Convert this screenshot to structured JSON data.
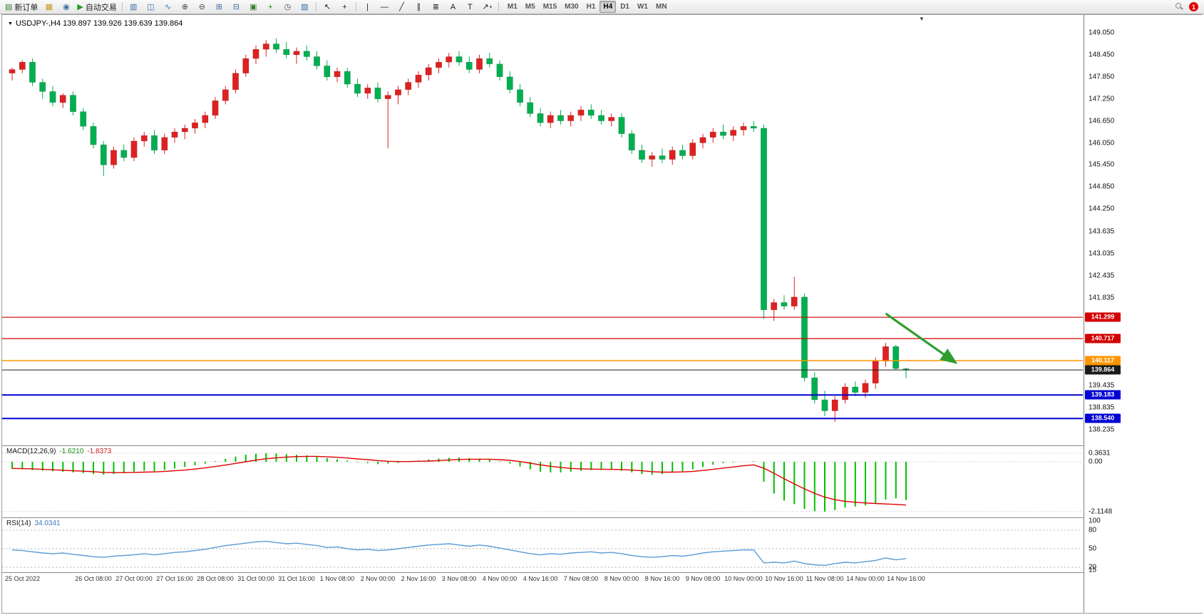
{
  "toolbar": {
    "items": [
      {
        "name": "new-order-button",
        "glyph": "▤",
        "gc": "#2e7d32",
        "label": "新订单"
      },
      {
        "name": "expert-advisors-icon",
        "glyph": "▦",
        "gc": "#c39b1a"
      },
      {
        "name": "market-watch-icon",
        "glyph": "◉",
        "gc": "#3a6ea5"
      },
      {
        "name": "auto-trading-button",
        "glyph": "▶",
        "gc": "#1e9b1e",
        "label": "自动交易"
      },
      {
        "sep": true
      },
      {
        "name": "bar-chart-icon",
        "glyph": "▥",
        "gc": "#3a6ea5"
      },
      {
        "name": "candlestick-chart-icon",
        "glyph": "◫",
        "gc": "#3a6ea5"
      },
      {
        "name": "line-chart-icon",
        "glyph": "∿",
        "gc": "#3a6ea5"
      },
      {
        "name": "zoom-in-icon",
        "glyph": "⊕",
        "gc": "#444444"
      },
      {
        "name": "zoom-out-icon",
        "glyph": "⊖",
        "gc": "#444444"
      },
      {
        "name": "tile-windows-icon",
        "glyph": "⊞",
        "gc": "#3a6ea5"
      },
      {
        "name": "cascade-windows-icon",
        "glyph": "⊟",
        "gc": "#3a6ea5"
      },
      {
        "name": "new-chart-icon",
        "glyph": "▣",
        "gc": "#2e7d32"
      },
      {
        "name": "indicators-icon",
        "glyph": "+",
        "gc": "#0a8a0a"
      },
      {
        "name": "period-icon",
        "glyph": "◷",
        "gc": "#444444"
      },
      {
        "name": "template-icon",
        "glyph": "▨",
        "gc": "#3a6ea5"
      },
      {
        "sep": true
      },
      {
        "name": "cursor-icon",
        "glyph": "↖",
        "gc": "#222222"
      },
      {
        "name": "crosshair-icon",
        "glyph": "+",
        "gc": "#222222"
      },
      {
        "sep": true
      },
      {
        "name": "vertical-line-icon",
        "glyph": "|",
        "gc": "#222222"
      },
      {
        "name": "horizontal-line-icon",
        "glyph": "—",
        "gc": "#222222"
      },
      {
        "name": "trendline-icon",
        "glyph": "╱",
        "gc": "#222222"
      },
      {
        "name": "channel-icon",
        "glyph": "∥",
        "gc": "#222222"
      },
      {
        "name": "fibonacci-icon",
        "glyph": "≣",
        "gc": "#222222"
      },
      {
        "name": "text-icon",
        "glyph": "A",
        "gc": "#222222"
      },
      {
        "name": "label-icon",
        "glyph": "T",
        "gc": "#222222"
      },
      {
        "name": "arrows-tool-icon",
        "glyph": "↗",
        "gc": "#222222",
        "caret": true
      },
      {
        "sep": true
      }
    ],
    "timeframes": [
      "M1",
      "M5",
      "M15",
      "M30",
      "H1",
      "H4",
      "D1",
      "W1",
      "MN"
    ],
    "active_timeframe": "H4",
    "notification_count": "1"
  },
  "chart": {
    "symbol_label": "USDJPY-,H4 139.897 139.926 139.639 139.864"
  },
  "chart_data": {
    "type": "candlestick",
    "symbol": "USDJPY-",
    "timeframe": "H4",
    "ohlc_current": {
      "open": 139.897,
      "high": 139.926,
      "low": 139.639,
      "close": 139.864
    },
    "colors": {
      "up": "#e02020",
      "down": "#00b050"
    },
    "price_axis_ticks": [
      149.05,
      148.45,
      147.85,
      147.25,
      146.65,
      146.05,
      145.45,
      144.85,
      144.25,
      143.635,
      143.035,
      142.435,
      141.835,
      139.435,
      138.835,
      138.235
    ],
    "horizontal_lines": [
      {
        "price": 141.299,
        "color": "#d20000",
        "width": 1.2
      },
      {
        "price": 140.717,
        "color": "#d20000",
        "width": 1.2
      },
      {
        "price": 140.117,
        "color": "#ff9500",
        "width": 1.6
      },
      {
        "price": 139.183,
        "color": "#0000d2",
        "width": 2
      },
      {
        "price": 138.54,
        "color": "#0000d2",
        "width": 2
      }
    ],
    "current_price_line": {
      "price": 139.864,
      "color": "#1a1a1a"
    },
    "annotation_arrow": {
      "from_bar": 86,
      "from_price": 141.4,
      "to_bar": 92.8,
      "to_price": 140.08,
      "color": "#2f9e2f"
    },
    "candles": [
      [
        147.95,
        148.1,
        147.75,
        148.05
      ],
      [
        148.05,
        148.3,
        147.95,
        148.25
      ],
      [
        148.25,
        148.35,
        147.6,
        147.7
      ],
      [
        147.7,
        147.8,
        147.25,
        147.45
      ],
      [
        147.45,
        147.6,
        147.05,
        147.15
      ],
      [
        147.15,
        147.4,
        147.0,
        147.35
      ],
      [
        147.35,
        147.45,
        146.8,
        146.9
      ],
      [
        146.9,
        147.0,
        146.4,
        146.5
      ],
      [
        146.5,
        146.6,
        145.9,
        146.0
      ],
      [
        146.0,
        146.1,
        145.15,
        145.45
      ],
      [
        145.45,
        145.95,
        145.35,
        145.85
      ],
      [
        145.85,
        146.0,
        145.55,
        145.65
      ],
      [
        145.65,
        146.2,
        145.55,
        146.1
      ],
      [
        146.1,
        146.35,
        145.95,
        146.25
      ],
      [
        146.25,
        146.4,
        145.75,
        145.85
      ],
      [
        145.85,
        146.3,
        145.75,
        146.2
      ],
      [
        146.2,
        146.45,
        146.05,
        146.35
      ],
      [
        146.35,
        146.55,
        146.15,
        146.45
      ],
      [
        146.45,
        146.7,
        146.3,
        146.6
      ],
      [
        146.6,
        146.9,
        146.45,
        146.8
      ],
      [
        146.8,
        147.3,
        146.7,
        147.2
      ],
      [
        147.2,
        147.6,
        147.1,
        147.5
      ],
      [
        147.5,
        148.05,
        147.4,
        147.95
      ],
      [
        147.95,
        148.45,
        147.85,
        148.35
      ],
      [
        148.35,
        148.7,
        148.2,
        148.6
      ],
      [
        148.6,
        148.85,
        148.4,
        148.75
      ],
      [
        148.75,
        148.9,
        148.5,
        148.6
      ],
      [
        148.6,
        148.8,
        148.35,
        148.45
      ],
      [
        148.45,
        148.65,
        148.2,
        148.55
      ],
      [
        148.55,
        148.7,
        148.3,
        148.4
      ],
      [
        148.4,
        148.55,
        148.05,
        148.15
      ],
      [
        148.15,
        148.3,
        147.75,
        147.85
      ],
      [
        147.85,
        148.1,
        147.7,
        148.0
      ],
      [
        148.0,
        148.1,
        147.55,
        147.65
      ],
      [
        147.65,
        147.8,
        147.3,
        147.4
      ],
      [
        147.4,
        147.65,
        147.25,
        147.55
      ],
      [
        147.55,
        147.7,
        147.15,
        147.25
      ],
      [
        147.25,
        147.45,
        145.9,
        147.35
      ],
      [
        147.35,
        147.6,
        147.1,
        147.5
      ],
      [
        147.5,
        147.8,
        147.35,
        147.7
      ],
      [
        147.7,
        148.0,
        147.55,
        147.9
      ],
      [
        147.9,
        148.2,
        147.75,
        148.1
      ],
      [
        148.1,
        148.35,
        147.95,
        148.25
      ],
      [
        148.25,
        148.5,
        148.1,
        148.4
      ],
      [
        148.4,
        148.55,
        148.15,
        148.25
      ],
      [
        148.25,
        148.4,
        147.95,
        148.05
      ],
      [
        148.05,
        148.45,
        147.95,
        148.35
      ],
      [
        148.35,
        148.5,
        148.1,
        148.2
      ],
      [
        148.2,
        148.3,
        147.75,
        147.85
      ],
      [
        147.85,
        148.0,
        147.4,
        147.5
      ],
      [
        147.5,
        147.65,
        147.05,
        147.15
      ],
      [
        147.15,
        147.3,
        146.75,
        146.85
      ],
      [
        146.85,
        147.0,
        146.5,
        146.6
      ],
      [
        146.6,
        146.9,
        146.45,
        146.8
      ],
      [
        146.8,
        146.95,
        146.55,
        146.65
      ],
      [
        146.65,
        146.9,
        146.5,
        146.8
      ],
      [
        146.8,
        147.05,
        146.65,
        146.95
      ],
      [
        146.95,
        147.1,
        146.7,
        146.8
      ],
      [
        146.8,
        146.95,
        146.55,
        146.65
      ],
      [
        146.65,
        146.85,
        146.5,
        146.75
      ],
      [
        146.75,
        146.85,
        146.2,
        146.3
      ],
      [
        146.3,
        146.4,
        145.75,
        145.85
      ],
      [
        145.85,
        146.0,
        145.5,
        145.6
      ],
      [
        145.6,
        145.8,
        145.4,
        145.7
      ],
      [
        145.7,
        145.9,
        145.5,
        145.6
      ],
      [
        145.6,
        145.95,
        145.45,
        145.85
      ],
      [
        145.85,
        146.0,
        145.6,
        145.7
      ],
      [
        145.7,
        146.15,
        145.6,
        146.05
      ],
      [
        146.05,
        146.3,
        145.9,
        146.2
      ],
      [
        146.2,
        146.45,
        146.05,
        146.35
      ],
      [
        146.35,
        146.55,
        146.15,
        146.25
      ],
      [
        146.25,
        146.5,
        146.1,
        146.4
      ],
      [
        146.4,
        146.6,
        146.25,
        146.5
      ],
      [
        146.5,
        146.65,
        146.35,
        146.45
      ],
      [
        146.45,
        146.55,
        141.25,
        141.5
      ],
      [
        141.5,
        141.8,
        141.2,
        141.7
      ],
      [
        141.7,
        141.9,
        141.5,
        141.6
      ],
      [
        141.6,
        142.4,
        141.5,
        141.85
      ],
      [
        141.85,
        141.95,
        139.55,
        139.65
      ],
      [
        139.65,
        139.8,
        138.95,
        139.05
      ],
      [
        139.05,
        139.3,
        138.6,
        138.75
      ],
      [
        138.75,
        139.15,
        138.45,
        139.05
      ],
      [
        139.05,
        139.5,
        138.95,
        139.4
      ],
      [
        139.4,
        139.55,
        139.15,
        139.25
      ],
      [
        139.25,
        139.6,
        139.1,
        139.5
      ],
      [
        139.5,
        140.2,
        139.35,
        140.1
      ],
      [
        140.1,
        140.6,
        139.95,
        140.5
      ],
      [
        140.5,
        140.55,
        139.85,
        139.9
      ],
      [
        139.897,
        139.926,
        139.639,
        139.864
      ]
    ],
    "macd": {
      "name": "MACD(12,26,9)",
      "value_main": "-1.6210",
      "value_signal": "-1.8373",
      "hist_color": "#00c000",
      "signal_color": "#e00000",
      "axis_labels": [
        {
          "v": 0.3631,
          "t": "0.3631"
        },
        {
          "v": 0,
          "t": "0.00"
        },
        {
          "v": -2.1148,
          "t": "-2.1148"
        }
      ],
      "histogram": [
        -0.3,
        -0.32,
        -0.35,
        -0.38,
        -0.4,
        -0.42,
        -0.45,
        -0.48,
        -0.52,
        -0.55,
        -0.52,
        -0.48,
        -0.42,
        -0.38,
        -0.4,
        -0.35,
        -0.28,
        -0.22,
        -0.15,
        -0.08,
        0.02,
        0.12,
        0.22,
        0.3,
        0.34,
        0.363,
        0.35,
        0.32,
        0.3,
        0.27,
        0.22,
        0.15,
        0.1,
        0.05,
        -0.02,
        -0.05,
        -0.1,
        -0.08,
        -0.05,
        0.0,
        0.05,
        0.1,
        0.14,
        0.17,
        0.18,
        0.15,
        0.14,
        0.1,
        0.02,
        -0.08,
        -0.2,
        -0.32,
        -0.42,
        -0.45,
        -0.45,
        -0.42,
        -0.38,
        -0.35,
        -0.34,
        -0.33,
        -0.38,
        -0.45,
        -0.52,
        -0.55,
        -0.52,
        -0.45,
        -0.4,
        -0.32,
        -0.22,
        -0.12,
        -0.05,
        -0.02,
        0.0,
        0.02,
        -0.85,
        -1.35,
        -1.65,
        -1.8,
        -2.0,
        -2.1,
        -2.115,
        -2.05,
        -1.95,
        -1.9,
        -1.85,
        -1.75,
        -1.6,
        -1.55,
        -1.621
      ],
      "signal": [
        -0.28,
        -0.29,
        -0.3,
        -0.32,
        -0.34,
        -0.36,
        -0.38,
        -0.4,
        -0.42,
        -0.45,
        -0.46,
        -0.46,
        -0.45,
        -0.44,
        -0.43,
        -0.41,
        -0.38,
        -0.35,
        -0.31,
        -0.26,
        -0.2,
        -0.14,
        -0.07,
        0.0,
        0.07,
        0.13,
        0.17,
        0.2,
        0.22,
        0.23,
        0.23,
        0.21,
        0.19,
        0.16,
        0.12,
        0.09,
        0.05,
        0.02,
        0.01,
        0.01,
        0.02,
        0.03,
        0.05,
        0.08,
        0.1,
        0.11,
        0.11,
        0.11,
        0.09,
        0.06,
        0.01,
        -0.06,
        -0.13,
        -0.19,
        -0.24,
        -0.28,
        -0.3,
        -0.31,
        -0.32,
        -0.32,
        -0.33,
        -0.35,
        -0.38,
        -0.42,
        -0.44,
        -0.44,
        -0.43,
        -0.41,
        -0.37,
        -0.32,
        -0.27,
        -0.22,
        -0.17,
        -0.13,
        -0.27,
        -0.49,
        -0.72,
        -0.94,
        -1.15,
        -1.34,
        -1.5,
        -1.61,
        -1.68,
        -1.72,
        -1.75,
        -1.77,
        -1.79,
        -1.81,
        -1.8373
      ]
    },
    "rsi": {
      "name": "RSI(14)",
      "value": "34.0341",
      "line_color": "#5b9bd5",
      "axis_labels": [
        100,
        80,
        50,
        20,
        15
      ],
      "dashed_levels": [
        80,
        50,
        20
      ],
      "values": [
        48,
        47,
        45,
        43,
        42,
        43,
        41,
        39,
        37,
        36,
        38,
        39,
        40,
        42,
        40,
        42,
        44,
        45,
        47,
        49,
        52,
        55,
        57,
        59,
        61,
        62,
        60,
        58,
        59,
        57,
        55,
        52,
        53,
        50,
        48,
        49,
        47,
        48,
        50,
        52,
        54,
        56,
        57,
        58,
        56,
        54,
        56,
        54,
        51,
        48,
        45,
        42,
        40,
        42,
        41,
        43,
        44,
        45,
        43,
        44,
        42,
        39,
        37,
        36,
        37,
        39,
        38,
        40,
        43,
        45,
        46,
        47,
        48,
        48,
        27,
        28,
        27,
        30,
        26,
        24,
        23,
        26,
        28,
        27,
        29,
        31,
        35,
        32,
        34.0341
      ]
    },
    "time_labels": [
      {
        "bar": 0,
        "text": "25 Oct 2022"
      },
      {
        "bar": 8,
        "text": "26 Oct 08:00"
      },
      {
        "bar": 12,
        "text": "27 Oct 00:00"
      },
      {
        "bar": 16,
        "text": "27 Oct 16:00"
      },
      {
        "bar": 20,
        "text": "28 Oct 08:00"
      },
      {
        "bar": 24,
        "text": "31 Oct 00:00"
      },
      {
        "bar": 28,
        "text": "31 Oct 16:00"
      },
      {
        "bar": 32,
        "text": "1 Nov 08:00"
      },
      {
        "bar": 36,
        "text": "2 Nov 00:00"
      },
      {
        "bar": 40,
        "text": "2 Nov 16:00"
      },
      {
        "bar": 44,
        "text": "3 Nov 08:00"
      },
      {
        "bar": 48,
        "text": "4 Nov 00:00"
      },
      {
        "bar": 52,
        "text": "4 Nov 16:00"
      },
      {
        "bar": 56,
        "text": "7 Nov 08:00"
      },
      {
        "bar": 60,
        "text": "8 Nov 00:00"
      },
      {
        "bar": 64,
        "text": "8 Nov 16:00"
      },
      {
        "bar": 68,
        "text": "9 Nov 08:00"
      },
      {
        "bar": 72,
        "text": "10 Nov 00:00"
      },
      {
        "bar": 76,
        "text": "10 Nov 16:00"
      },
      {
        "bar": 80,
        "text": "11 Nov 08:00"
      },
      {
        "bar": 84,
        "text": "14 Nov 00:00"
      },
      {
        "bar": 88,
        "text": "14 Nov 16:00"
      }
    ]
  }
}
